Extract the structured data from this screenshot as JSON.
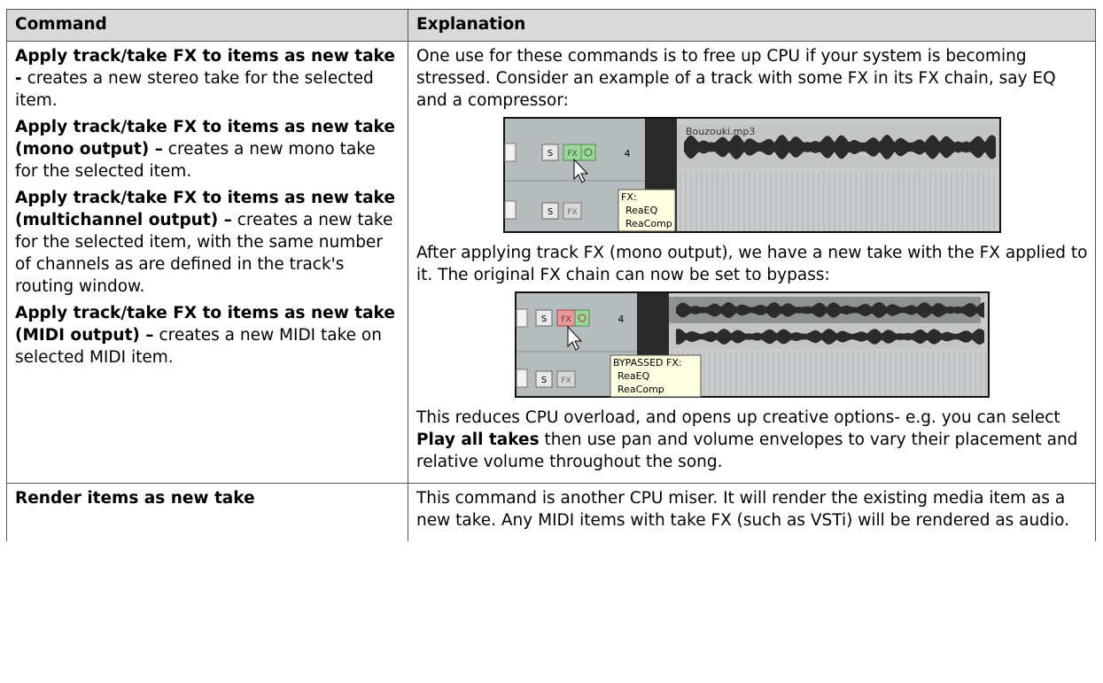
{
  "table": {
    "header": [
      "Command",
      "Explanation"
    ],
    "rows": [
      {
        "command": [
          {
            "bold": "Apply track/take FX to items as new take -",
            "text": " creates a new stereo take for the selected item."
          },
          {
            "bold": "Apply track/take FX to items as new take (mono output) –",
            "text": " creates a new mono take for the selected item."
          },
          {
            "bold": "Apply track/take FX to items as new take (multichannel output) –",
            "text": " creates a new take for the selected item, with the same number of channels as are defined in the track's routing window."
          },
          {
            "bold": "Apply track/take FX to items as new take (MIDI output) –",
            "text": " creates a new MIDI take on selected MIDI item."
          }
        ],
        "explanation": {
          "paragraph_1": "One use for these commands is to free up CPU if your system is becoming stressed. Consider an example of a track with some FX in its FX chain, say EQ and a compressor:",
          "screenshot_1": {
            "file_label": "Bouzouki.mp3",
            "solo": "S",
            "fx": "FX",
            "track_number": "4",
            "solo_2": "S",
            "fx_2": "FX",
            "tooltip_title": "FX:",
            "tooltip_items": [
              "ReaEQ",
              "ReaComp"
            ]
          },
          "paragraph_2": "After applying track FX (mono output), we have a new take with the FX applied to it. The original FX chain can now be set to bypass:",
          "screenshot_2": {
            "solo": "S",
            "fx": "FX",
            "track_number": "4",
            "solo_2": "S",
            "fx_2": "FX",
            "tooltip_title": "BYPASSED FX:",
            "tooltip_items": [
              "ReaEQ",
              "ReaComp"
            ]
          },
          "paragraph_3": [
            "This reduces CPU overload, and opens up creative options- e.g. you can select ",
            "Play all takes",
            " then use pan and volume envelopes to vary their placement and relative volume throughout the song."
          ]
        }
      },
      {
        "command": [
          {
            "bold": "Render items as new take",
            "text": ""
          }
        ],
        "explanation": {
          "paragraph_1": "This command is another CPU miser. It will render the existing media item as a new take. Any MIDI items with take FX (such as VSTi) will be rendered as audio."
        }
      }
    ]
  }
}
